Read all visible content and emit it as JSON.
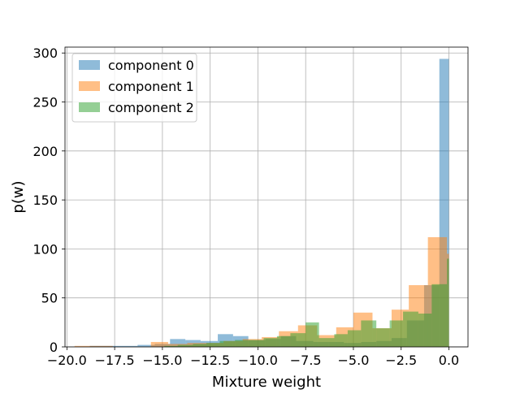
{
  "chart_data": {
    "type": "histogram",
    "xlabel": "Mixture weight",
    "ylabel": "p(w)",
    "xlim": [
      -20.1,
      1.0
    ],
    "ylim": [
      0,
      306
    ],
    "grid": true,
    "legend_position": "upper-left",
    "x_ticks": [
      -20.0,
      -17.5,
      -15.0,
      -12.5,
      -10.0,
      -7.5,
      -5.0,
      -2.5,
      0.0
    ],
    "x_tick_labels": [
      "−20.0",
      "−17.5",
      "−15.0",
      "−12.5",
      "−10.0",
      "−7.5",
      "−5.0",
      "−2.5",
      "0.0"
    ],
    "y_ticks": [
      0,
      50,
      100,
      150,
      200,
      250,
      300
    ],
    "y_tick_labels": [
      "0",
      "50",
      "100",
      "150",
      "200",
      "250",
      "300"
    ],
    "series": [
      {
        "name": "component 0",
        "color": "#1f77b4",
        "alpha": 0.5,
        "bins": [
          [
            -19.6,
            -18.8,
            0
          ],
          [
            -18.8,
            -17.9,
            1
          ],
          [
            -17.9,
            -17.1,
            1
          ],
          [
            -17.1,
            -16.3,
            1
          ],
          [
            -16.3,
            -15.4,
            2
          ],
          [
            -15.4,
            -14.6,
            3
          ],
          [
            -14.6,
            -13.8,
            8
          ],
          [
            -13.8,
            -13.0,
            7
          ],
          [
            -13.0,
            -12.1,
            6
          ],
          [
            -12.1,
            -11.3,
            13
          ],
          [
            -11.3,
            -10.5,
            11
          ],
          [
            -10.5,
            -9.6,
            7
          ],
          [
            -9.6,
            -8.8,
            8
          ],
          [
            -8.8,
            -8.0,
            11
          ],
          [
            -8.0,
            -7.1,
            6
          ],
          [
            -7.1,
            -6.3,
            5
          ],
          [
            -6.3,
            -5.5,
            5
          ],
          [
            -5.5,
            -4.6,
            4
          ],
          [
            -4.6,
            -3.8,
            5
          ],
          [
            -3.8,
            -3.0,
            6
          ],
          [
            -3.0,
            -2.2,
            9
          ],
          [
            -2.2,
            -1.3,
            27
          ],
          [
            -1.3,
            -0.5,
            63
          ],
          [
            -0.5,
            0.0,
            294
          ]
        ]
      },
      {
        "name": "component 1",
        "color": "#ff7f0e",
        "alpha": 0.5,
        "bins": [
          [
            -19.6,
            -18.6,
            1
          ],
          [
            -18.6,
            -17.6,
            1
          ],
          [
            -17.6,
            -16.6,
            0
          ],
          [
            -16.6,
            -15.6,
            0
          ],
          [
            -15.6,
            -14.7,
            5
          ],
          [
            -14.7,
            -13.7,
            3
          ],
          [
            -13.7,
            -12.7,
            4
          ],
          [
            -12.7,
            -11.8,
            4
          ],
          [
            -11.8,
            -10.8,
            6
          ],
          [
            -10.8,
            -9.8,
            8
          ],
          [
            -9.8,
            -8.9,
            10
          ],
          [
            -8.9,
            -7.9,
            16
          ],
          [
            -7.9,
            -6.9,
            22
          ],
          [
            -6.9,
            -5.9,
            12
          ],
          [
            -5.9,
            -5.0,
            20
          ],
          [
            -5.0,
            -4.0,
            35
          ],
          [
            -4.0,
            -3.0,
            19
          ],
          [
            -3.0,
            -2.1,
            38
          ],
          [
            -2.1,
            -1.1,
            63
          ],
          [
            -1.1,
            -0.1,
            112
          ],
          [
            -0.1,
            0.0,
            95
          ]
        ]
      },
      {
        "name": "component 2",
        "color": "#2ca02c",
        "alpha": 0.5,
        "bins": [
          [
            -14.9,
            -14.2,
            1
          ],
          [
            -14.2,
            -13.4,
            2
          ],
          [
            -13.4,
            -12.7,
            3
          ],
          [
            -12.7,
            -12.0,
            4
          ],
          [
            -12.0,
            -11.2,
            6
          ],
          [
            -11.2,
            -10.5,
            7
          ],
          [
            -10.5,
            -9.7,
            7
          ],
          [
            -9.7,
            -9.0,
            9
          ],
          [
            -9.0,
            -8.3,
            11
          ],
          [
            -8.3,
            -7.5,
            14
          ],
          [
            -7.5,
            -6.8,
            25
          ],
          [
            -6.8,
            -6.0,
            9
          ],
          [
            -6.0,
            -5.3,
            13
          ],
          [
            -5.3,
            -4.6,
            17
          ],
          [
            -4.6,
            -3.8,
            27
          ],
          [
            -3.8,
            -3.1,
            19
          ],
          [
            -3.1,
            -2.4,
            27
          ],
          [
            -2.4,
            -1.6,
            36
          ],
          [
            -1.6,
            -0.9,
            34
          ],
          [
            -0.9,
            -0.1,
            64
          ],
          [
            -0.1,
            0.0,
            90
          ]
        ]
      }
    ]
  }
}
